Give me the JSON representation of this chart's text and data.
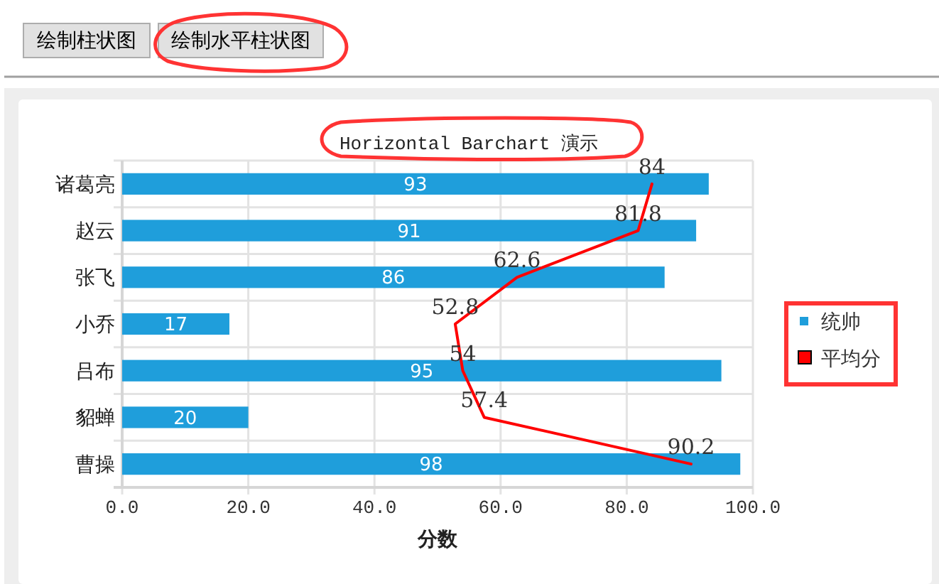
{
  "chart_data": {
    "type": "bar",
    "orientation": "horizontal",
    "title": "Horizontal Barchart 演示",
    "xlabel": "分数",
    "categories": [
      "诸葛亮",
      "赵云",
      "张飞",
      "小乔",
      "吕布",
      "貂蝉",
      "曹操"
    ],
    "series": [
      {
        "name": "统帅",
        "color": "#1f9edb",
        "values": [
          93,
          91,
          86,
          17,
          95,
          20,
          98
        ]
      },
      {
        "name": "平均分",
        "type": "line",
        "color": "#ff0000",
        "values": [
          84,
          81.8,
          62.6,
          52.8,
          54,
          57.4,
          90.2
        ]
      }
    ],
    "xlim": [
      0,
      100
    ],
    "xticks": [
      {
        "value": 0,
        "label": "0.0"
      },
      {
        "value": 20,
        "label": "20.0"
      },
      {
        "value": 40,
        "label": "40.0"
      },
      {
        "value": 60,
        "label": "60.0"
      },
      {
        "value": 80,
        "label": "80.0"
      },
      {
        "value": 100,
        "label": "100.0"
      }
    ],
    "grid": true,
    "legend": "right",
    "data_labels": true,
    "annotations": [
      "绘制柱状图",
      "绘制水平柱状图"
    ]
  }
}
